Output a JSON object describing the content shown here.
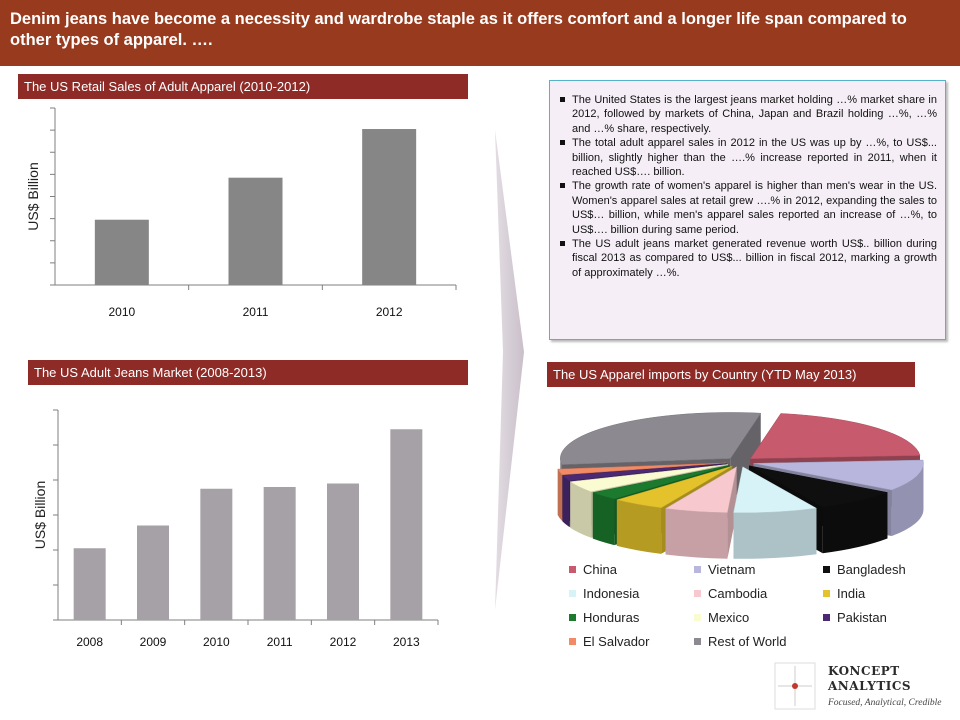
{
  "header": {
    "text": "Denim jeans have become a necessity and wardrobe staple as it offers comfort and a longer life span compared to other types of apparel. …."
  },
  "summary": {
    "bullets": [
      "The United States is the largest jeans market holding …% market share in 2012, followed by markets of China, Japan and Brazil holding …%, …% and …% share, respectively.",
      "The total adult apparel sales in 2012 in the US was up by …%, to US$... billion, slightly higher than the ….% increase reported in 2011, when it reached US$…. billion.",
      "The growth rate of women's apparel is higher than men's wear in the US. Women's apparel sales at retail grew ….% in 2012, expanding the sales to US$… billion, while men's apparel sales reported an increase of …%, to US$…. billion during same period.",
      "The US adult jeans market generated revenue worth US$.. billion during fiscal 2013 as compared to US$... billion in fiscal 2012, marking a growth of approximately …%."
    ]
  },
  "chart_data": [
    {
      "type": "bar",
      "title": "The US Retail Sales of Adult Apparel (2010-2012)",
      "ylabel": "US$ Billion",
      "xlabel": "",
      "categories": [
        "2010",
        "2011",
        "2012"
      ],
      "values": [
        2.95,
        4.85,
        7.05
      ],
      "ylim": [
        0,
        8
      ],
      "yticks_labeled": false,
      "bar_color": "#868686",
      "grid": false
    },
    {
      "type": "bar",
      "title": "The US Adult Jeans Market (2008-2013)",
      "ylabel": "US$ Billion",
      "xlabel": "",
      "categories": [
        "2008",
        "2009",
        "2010",
        "2011",
        "2012",
        "2013"
      ],
      "values": [
        2.05,
        2.7,
        3.75,
        3.8,
        3.9,
        5.45
      ],
      "ylim": [
        0,
        6
      ],
      "yticks_labeled": false,
      "bar_color": "#a6a1a6",
      "grid": false
    },
    {
      "type": "pie",
      "style": "3d-exploded",
      "title": "The US Apparel imports by Country (YTD May 2013)",
      "legend_position": "bottom",
      "slices": [
        {
          "name": "China",
          "value": 21,
          "color": "#c85a6e"
        },
        {
          "name": "Vietnam",
          "value": 11,
          "color": "#b8b6dc"
        },
        {
          "name": "Bangladesh",
          "value": 8,
          "color": "#0f0f0f"
        },
        {
          "name": "Indonesia",
          "value": 8,
          "color": "#d7f3f7"
        },
        {
          "name": "Cambodia",
          "value": 6,
          "color": "#f7c8cd"
        },
        {
          "name": "India",
          "value": 5,
          "color": "#e4c22b"
        },
        {
          "name": "Honduras",
          "value": 3,
          "color": "#1b7a2e"
        },
        {
          "name": "Mexico",
          "value": 4,
          "color": "#fbfbd2"
        },
        {
          "name": "Pakistan",
          "value": 2,
          "color": "#4b2a73"
        },
        {
          "name": "El Salvador",
          "value": 2,
          "color": "#f28a65"
        },
        {
          "name": "Rest of World",
          "value": 30,
          "color": "#8d8990"
        }
      ]
    }
  ],
  "logo": {
    "line1": "KONCEPT",
    "line2": "ANALYTICS",
    "tagline": "Focused, Analytical, Credible",
    "color": "#c0392b"
  }
}
